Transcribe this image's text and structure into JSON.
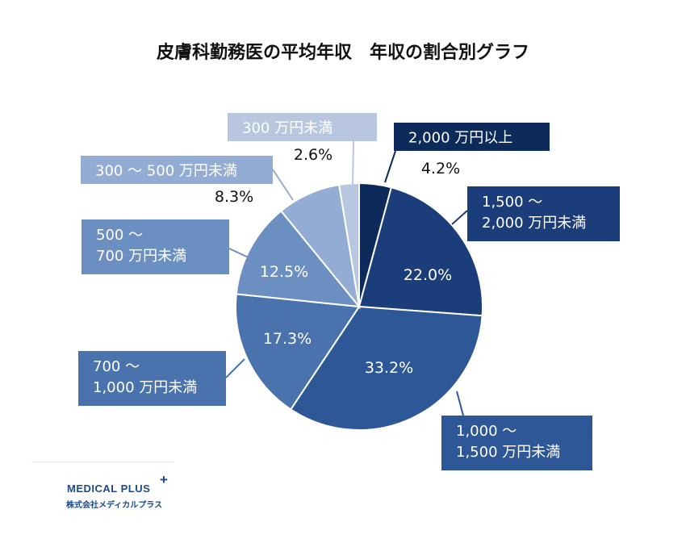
{
  "chart_data": {
    "type": "pie",
    "title": "皮膚科勤務医の平均年収　年収の割合別グラフ",
    "slices": [
      {
        "label": [
          "2,000 万円以上"
        ],
        "value": 4.2,
        "pct_label": "4.2%",
        "color": "#0c2a5a"
      },
      {
        "label": [
          "1,500 〜",
          "2,000 万円未満"
        ],
        "value": 22.0,
        "pct_label": "22.0%",
        "color": "#1b3d7a"
      },
      {
        "label": [
          "1,000 〜",
          "1,500 万円未満"
        ],
        "value": 33.2,
        "pct_label": "33.2%",
        "color": "#2e5797"
      },
      {
        "label": [
          "700 〜",
          "1,000 万円未満"
        ],
        "value": 17.3,
        "pct_label": "17.3%",
        "color": "#4a72ad"
      },
      {
        "label": [
          "500 〜",
          "700 万円未満"
        ],
        "value": 12.5,
        "pct_label": "12.5%",
        "color": "#6c8fc2"
      },
      {
        "label": [
          "300 〜 500 万円未満"
        ],
        "value": 8.3,
        "pct_label": "8.3%",
        "color": "#93acd3"
      },
      {
        "label": [
          "300 万円未満"
        ],
        "value": 2.6,
        "pct_label": "2.6%",
        "color": "#b8c7df"
      }
    ]
  },
  "logo": {
    "wordmark": "MEDICAL PLUS",
    "plus": "+",
    "company": "株式会社メディカルプラス",
    "color": "#1a4a8a"
  }
}
